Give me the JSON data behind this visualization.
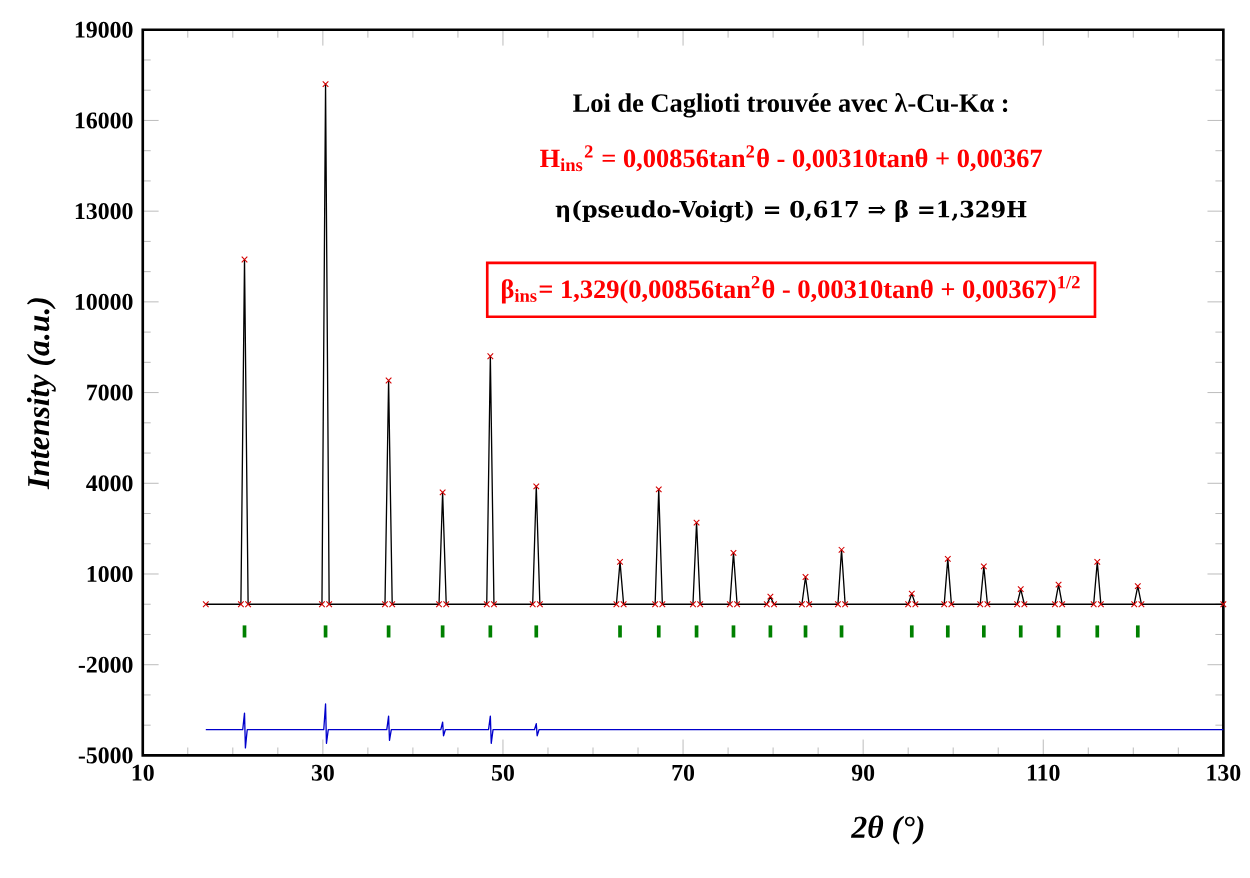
{
  "chart_data": {
    "type": "line",
    "xlabel": "2θ (°)",
    "ylabel": "Intensity (a.u.)",
    "xlim": [
      10,
      130
    ],
    "xticks": [
      10,
      30,
      50,
      70,
      90,
      110,
      130
    ],
    "ylim": [
      -5000,
      19000
    ],
    "yticks": [
      -5000,
      -2000,
      1000,
      4000,
      7000,
      10000,
      13000,
      16000,
      19000
    ],
    "grid": false,
    "annotations": [
      "Loi de Caglioti trouvée avec λ-Cu-Kα :",
      "H$_{ins}$$^{2}$ = 0,00856tan$^{2}$θ - 0,00310tanθ + 0,00367",
      "η(pseudo-Voigt) = 0,617  ⇒  β =1,329H",
      "β$_{ins}$= 1,329(0,00856tan$^{2}$θ - 0,00310tanθ + 0,00367)$^{1/2}$"
    ],
    "series": [
      {
        "type": "scatter",
        "marker": "cross",
        "color": "#d40000",
        "x": [
          17,
          20.9,
          21.3,
          21.7,
          29.9,
          30.3,
          30.7,
          36.9,
          37.3,
          37.7,
          42.9,
          43.3,
          43.7,
          48.2,
          48.6,
          49.0,
          53.3,
          53.7,
          54.1,
          62.6,
          63.0,
          63.4,
          66.9,
          67.3,
          67.7,
          71.1,
          71.5,
          71.9,
          75.2,
          75.6,
          76.0,
          79.3,
          79.7,
          80.1,
          83.2,
          83.6,
          84.0,
          87.2,
          87.6,
          88.0,
          95.0,
          95.4,
          95.8,
          99.0,
          99.4,
          99.8,
          103.0,
          103.4,
          103.8,
          107.1,
          107.5,
          107.9,
          111.3,
          111.7,
          112.1,
          115.6,
          116.0,
          116.4,
          120.1,
          120.5,
          120.9,
          130
        ],
        "values": [
          0,
          0,
          11400,
          0,
          0,
          17200,
          0,
          0,
          7400,
          0,
          0,
          3700,
          0,
          0,
          8200,
          0,
          0,
          3900,
          0,
          0,
          1400,
          0,
          0,
          3800,
          0,
          0,
          2700,
          0,
          0,
          1700,
          0,
          0,
          250,
          0,
          0,
          900,
          0,
          0,
          1800,
          0,
          0,
          350,
          0,
          0,
          1500,
          0,
          0,
          1250,
          0,
          0,
          500,
          0,
          0,
          650,
          0,
          0,
          1400,
          0,
          0,
          600,
          0,
          0
        ]
      },
      {
        "marker": "none",
        "color": "#000000",
        "x": [
          17,
          20.9,
          21.3,
          21.7,
          29.9,
          30.3,
          30.7,
          36.9,
          37.3,
          37.7,
          42.9,
          43.3,
          43.7,
          48.2,
          48.6,
          49.0,
          53.3,
          53.7,
          54.1,
          62.6,
          63.0,
          63.4,
          66.9,
          67.3,
          67.7,
          71.1,
          71.5,
          71.9,
          75.2,
          75.6,
          76.0,
          79.3,
          79.7,
          80.1,
          83.2,
          83.6,
          84.0,
          87.2,
          87.6,
          88.0,
          95.0,
          95.4,
          95.8,
          99.0,
          99.4,
          99.8,
          103.0,
          103.4,
          103.8,
          107.1,
          107.5,
          107.9,
          111.3,
          111.7,
          112.1,
          115.6,
          116.0,
          116.4,
          120.1,
          120.5,
          120.9,
          130
        ],
        "values": [
          0,
          0,
          11400,
          0,
          0,
          17200,
          0,
          0,
          7400,
          0,
          0,
          3700,
          0,
          0,
          8200,
          0,
          0,
          3900,
          0,
          0,
          1400,
          0,
          0,
          3800,
          0,
          0,
          2700,
          0,
          0,
          1700,
          0,
          0,
          250,
          0,
          0,
          900,
          0,
          0,
          1800,
          0,
          0,
          350,
          0,
          0,
          1500,
          0,
          0,
          1250,
          0,
          0,
          500,
          0,
          0,
          650,
          0,
          0,
          1400,
          0,
          0,
          600,
          0,
          0
        ]
      },
      {
        "marker": "none",
        "color": "#0000cc",
        "x": [
          17,
          21.1,
          21.3,
          21.4,
          21.6,
          30.1,
          30.3,
          30.4,
          30.6,
          37.1,
          37.3,
          37.4,
          37.6,
          43.1,
          43.3,
          43.4,
          43.6,
          48.4,
          48.6,
          48.7,
          48.9,
          53.5,
          53.7,
          53.8,
          54.0,
          130
        ],
        "values": [
          -4150,
          -4150,
          -3600,
          -4750,
          -4150,
          -4150,
          -3300,
          -4600,
          -4150,
          -4150,
          -3700,
          -4500,
          -4150,
          -4150,
          -3900,
          -4350,
          -4150,
          -4150,
          -3700,
          -4600,
          -4150,
          -4150,
          -3950,
          -4350,
          -4150,
          -4150
        ]
      },
      {
        "type": "bar",
        "color": "#008000",
        "x": [
          21.3,
          30.3,
          37.3,
          43.3,
          48.6,
          53.7,
          63.0,
          67.3,
          71.5,
          75.6,
          79.7,
          83.6,
          87.6,
          95.4,
          99.4,
          103.4,
          107.5,
          111.7,
          116.0,
          120.5
        ],
        "base": [
          -1100,
          -1100,
          -1100,
          -1100,
          -1100,
          -1100,
          -1100,
          -1100,
          -1100,
          -1100,
          -1100,
          -1100,
          -1100,
          -1100,
          -1100,
          -1100,
          -1100,
          -1100,
          -1100,
          -1100
        ],
        "values": [
          400,
          400,
          400,
          400,
          400,
          400,
          400,
          400,
          400,
          400,
          400,
          400,
          400,
          400,
          400,
          400,
          400,
          400,
          400,
          400
        ]
      }
    ]
  }
}
